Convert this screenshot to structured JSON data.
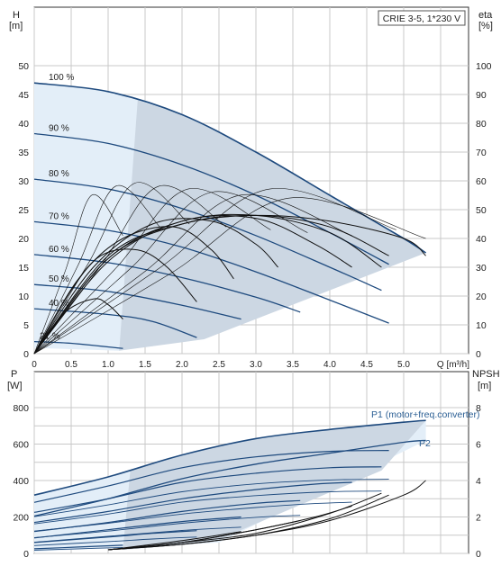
{
  "title_box": "CRIE 3-5, 1*230 V",
  "colors": {
    "grid": "#c8c8c8",
    "axis": "#333333",
    "band_light": "#e3eef8",
    "band_grey": "#ccd7e3",
    "curve_blue": "#1e4a7e",
    "curve_black": "#111111",
    "annotation_blue": "#2b5f94"
  },
  "chart_data": [
    {
      "id": "upper",
      "type": "line",
      "xlabel": "Q [m³/h]",
      "ylabel_left": [
        "H",
        "[m]"
      ],
      "ylabel_right": [
        "eta",
        "[%]"
      ],
      "xlim": [
        0,
        5.8
      ],
      "ylim": [
        0,
        55
      ],
      "y2lim": [
        0,
        110
      ],
      "x_ticks": [
        "0",
        "0.5",
        "1.0",
        "1.5",
        "2.0",
        "2.5",
        "3.0",
        "3.5",
        "4.0",
        "4.5",
        "5.0",
        "Q [m³/h]"
      ],
      "y_ticks": [
        "0",
        "5",
        "10",
        "15",
        "20",
        "25",
        "30",
        "35",
        "40",
        "45",
        "50"
      ],
      "y2_ticks": [
        "0",
        "10",
        "20",
        "30",
        "40",
        "50",
        "60",
        "70",
        "80",
        "90",
        "100"
      ],
      "grid": true,
      "speed_labels": [
        "100 %",
        "90 %",
        "80 %",
        "70 %",
        "60 %",
        "50 %",
        "40 %",
        "21 %"
      ],
      "head_series": [
        {
          "speed": 100,
          "x": [
            0,
            1.0,
            2.0,
            3.0,
            4.0,
            5.0,
            5.3
          ],
          "y": [
            47.0,
            45.5,
            41.5,
            35.0,
            27.5,
            20.0,
            17.5
          ]
        },
        {
          "speed": 90,
          "x": [
            0,
            1.0,
            2.0,
            3.0,
            4.0,
            4.8
          ],
          "y": [
            38.2,
            36.5,
            32.8,
            27.5,
            21.0,
            15.5
          ]
        },
        {
          "speed": 80,
          "x": [
            0,
            1.0,
            2.0,
            3.0,
            4.0,
            4.7
          ],
          "y": [
            30.3,
            28.6,
            25.2,
            20.5,
            15.0,
            11.0
          ]
        },
        {
          "speed": 70,
          "x": [
            0,
            1.0,
            2.0,
            3.0,
            4.0,
            4.8
          ],
          "y": [
            22.9,
            21.4,
            18.5,
            14.2,
            9.3,
            5.3
          ]
        },
        {
          "speed": 60,
          "x": [
            0,
            1.0,
            2.0,
            3.0,
            3.6
          ],
          "y": [
            17.2,
            15.8,
            13.2,
            9.8,
            7.2
          ]
        },
        {
          "speed": 50,
          "x": [
            0,
            1.0,
            2.0,
            2.8
          ],
          "y": [
            12.0,
            10.8,
            8.4,
            6.0
          ]
        },
        {
          "speed": 40,
          "x": [
            0,
            1.0,
            1.6,
            2.2
          ],
          "y": [
            7.8,
            6.8,
            5.6,
            2.8
          ]
        },
        {
          "speed": 21,
          "x": [
            0,
            0.5,
            1.2
          ],
          "y": [
            2.1,
            1.8,
            0.9
          ]
        }
      ],
      "efficiency_series": [
        {
          "speed": 100,
          "x": [
            0,
            1.0,
            2.0,
            3.0,
            4.0,
            5.0,
            5.3
          ],
          "eta": [
            0,
            34,
            45,
            48,
            46,
            40,
            34
          ]
        },
        {
          "speed": 90,
          "x": [
            0,
            1.0,
            2.0,
            3.0,
            4.0,
            4.8
          ],
          "eta": [
            0,
            33,
            45,
            48,
            44,
            34
          ]
        },
        {
          "speed": 80,
          "x": [
            0,
            1.0,
            2.0,
            3.0,
            4.0,
            4.7
          ],
          "eta": [
            0,
            33,
            46,
            48,
            42,
            30
          ]
        },
        {
          "speed": 70,
          "x": [
            0,
            1.0,
            2.0,
            3.0,
            3.8,
            4.3
          ],
          "eta": [
            0,
            32,
            46,
            47,
            38,
            30
          ]
        },
        {
          "speed": 60,
          "x": [
            0,
            0.8,
            1.6,
            2.4,
            3.0,
            3.3
          ],
          "eta": [
            0,
            30,
            45,
            46,
            38,
            30
          ]
        },
        {
          "speed": 50,
          "x": [
            0,
            0.6,
            1.2,
            1.9,
            2.4,
            2.7
          ],
          "eta": [
            0,
            26,
            40,
            44,
            36,
            26
          ]
        },
        {
          "speed": 40,
          "x": [
            0,
            0.5,
            0.9,
            1.4,
            1.8,
            2.2
          ],
          "eta": [
            0,
            22,
            34,
            36,
            30,
            18
          ]
        },
        {
          "speed": 21,
          "x": [
            0,
            0.4,
            0.8,
            1.0,
            1.2
          ],
          "eta": [
            0,
            14,
            19,
            17,
            12
          ]
        }
      ]
    },
    {
      "id": "lower",
      "type": "line",
      "ylabel_left": [
        "P",
        "[W]"
      ],
      "ylabel_right": [
        "NPSH",
        "[m]"
      ],
      "xlim": [
        0,
        5.8
      ],
      "ylim": [
        0,
        900
      ],
      "y2lim": [
        0,
        9
      ],
      "y_ticks": [
        "0",
        "200",
        "400",
        "600",
        "800"
      ],
      "y2_ticks": [
        "0",
        "2",
        "4",
        "6",
        "8"
      ],
      "grid": true,
      "annotations": [
        "P1 (motor+freq.converter)",
        "P2"
      ],
      "p1_max": {
        "x": [
          0,
          1.0,
          2.0,
          3.0,
          4.0,
          5.0,
          5.3
        ],
        "y": [
          320,
          420,
          540,
          630,
          680,
          720,
          730
        ]
      },
      "p2_max": {
        "x": [
          0,
          1.0,
          2.0,
          3.0,
          4.0,
          5.0,
          5.3
        ],
        "y": [
          205,
          300,
          410,
          490,
          550,
          610,
          620
        ]
      },
      "power_series": [
        {
          "x": [
            0,
            1.0,
            2.0,
            3.0,
            4.0,
            4.8
          ],
          "y": [
            280,
            370,
            470,
            530,
            560,
            565
          ]
        },
        {
          "x": [
            0,
            1.0,
            2.0,
            3.0,
            4.0,
            4.7
          ],
          "y": [
            225,
            300,
            390,
            440,
            470,
            475
          ]
        },
        {
          "x": [
            0,
            1.0,
            2.0,
            3.0,
            3.8,
            4.3
          ],
          "y": [
            170,
            230,
            300,
            350,
            380,
            390
          ]
        },
        {
          "x": [
            0,
            1.0,
            2.0,
            3.0,
            3.6
          ],
          "y": [
            120,
            170,
            230,
            275,
            290
          ]
        },
        {
          "x": [
            0,
            1.0,
            2.0,
            2.8
          ],
          "y": [
            85,
            130,
            175,
            200
          ]
        },
        {
          "x": [
            0,
            1.0,
            1.6,
            2.2
          ],
          "y": [
            60,
            90,
            110,
            125
          ]
        },
        {
          "x": [
            0,
            0.6,
            1.2
          ],
          "y": [
            25,
            35,
            45
          ]
        }
      ],
      "npsh_series": [
        {
          "x": [
            1.0,
            2.0,
            3.0,
            4.0,
            5.0,
            5.3
          ],
          "y": [
            0.2,
            0.5,
            1.0,
            1.8,
            3.2,
            4.0
          ]
        },
        {
          "x": [
            1.0,
            2.0,
            3.0,
            4.0,
            4.8
          ],
          "y": [
            0.2,
            0.5,
            1.0,
            1.9,
            3.2
          ]
        },
        {
          "x": [
            1.0,
            2.0,
            3.0,
            4.0,
            4.7
          ],
          "y": [
            0.2,
            0.6,
            1.1,
            2.2,
            3.3
          ]
        },
        {
          "x": [
            1.0,
            2.0,
            3.0,
            3.8,
            4.3
          ],
          "y": [
            0.2,
            0.6,
            1.3,
            2.0,
            2.6
          ]
        },
        {
          "x": [
            1.0,
            2.0,
            3.0,
            3.6
          ],
          "y": [
            0.2,
            0.6,
            1.3,
            1.8
          ]
        },
        {
          "x": [
            1.0,
            2.0,
            2.8
          ],
          "y": [
            0.2,
            0.7,
            1.2
          ]
        }
      ]
    }
  ]
}
